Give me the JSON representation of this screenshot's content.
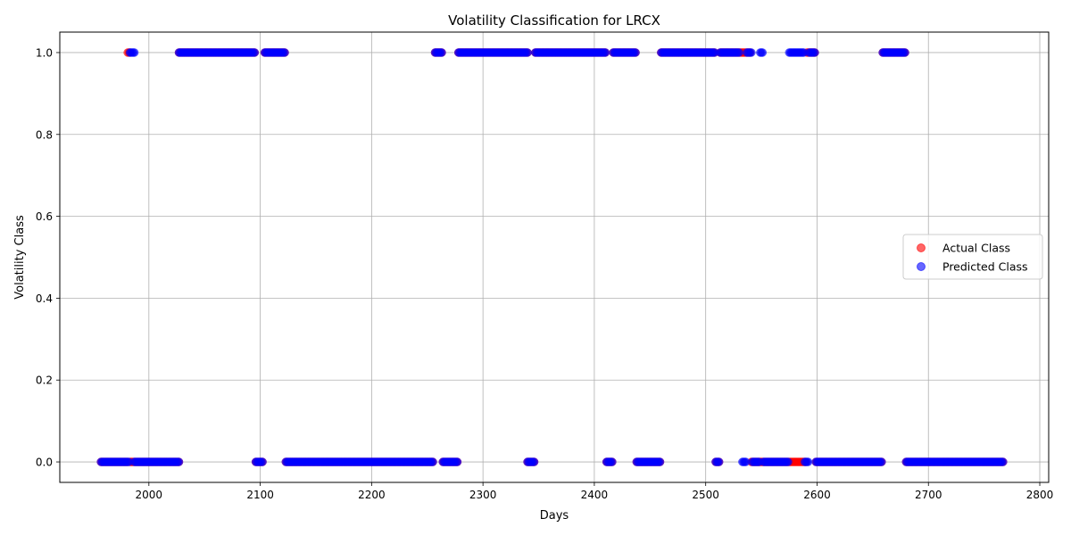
{
  "chart_data": {
    "type": "scatter",
    "title": "Volatility Classification for LRCX",
    "xlabel": "Days",
    "ylabel": "Volatility Class",
    "xlim": [
      1920,
      2808
    ],
    "ylim": [
      -0.05,
      1.05
    ],
    "xticks": [
      2000,
      2100,
      2200,
      2300,
      2400,
      2500,
      2600,
      2700,
      2800
    ],
    "yticks": [
      0.0,
      0.2,
      0.4,
      0.6,
      0.8,
      1.0
    ],
    "xtick_labels": [
      "2000",
      "2100",
      "2200",
      "2300",
      "2400",
      "2500",
      "2600",
      "2700",
      "2800"
    ],
    "ytick_labels": [
      "0.0",
      "0.2",
      "0.4",
      "0.6",
      "0.8",
      "1.0"
    ],
    "grid": true,
    "legend_position": "center-right",
    "series": [
      {
        "name": "Actual Class",
        "color": "#ff0000",
        "marker": "circle",
        "opacity": 0.6,
        "segments": [
          {
            "from": 1957,
            "to": 1981,
            "y": 0
          },
          {
            "from": 1981,
            "to": 1983,
            "y": 1
          },
          {
            "from": 1983,
            "to": 2027,
            "y": 0
          },
          {
            "from": 2027,
            "to": 2095,
            "y": 1
          },
          {
            "from": 2096,
            "to": 2102,
            "y": 0
          },
          {
            "from": 2104,
            "to": 2122,
            "y": 1
          },
          {
            "from": 2123,
            "to": 2255,
            "y": 0
          },
          {
            "from": 2257,
            "to": 2263,
            "y": 1
          },
          {
            "from": 2264,
            "to": 2277,
            "y": 0
          },
          {
            "from": 2278,
            "to": 2340,
            "y": 1
          },
          {
            "from": 2340,
            "to": 2346,
            "y": 0
          },
          {
            "from": 2347,
            "to": 2410,
            "y": 1
          },
          {
            "from": 2411,
            "to": 2416,
            "y": 0
          },
          {
            "from": 2417,
            "to": 2437,
            "y": 1
          },
          {
            "from": 2438,
            "to": 2459,
            "y": 0
          },
          {
            "from": 2460,
            "to": 2508,
            "y": 1
          },
          {
            "from": 2509,
            "to": 2512,
            "y": 0
          },
          {
            "from": 2513,
            "to": 2540,
            "y": 1
          },
          {
            "from": 2541,
            "to": 2590,
            "y": 0
          },
          {
            "from": 2591,
            "to": 2598,
            "y": 1
          },
          {
            "from": 2599,
            "to": 2658,
            "y": 0
          },
          {
            "from": 2659,
            "to": 2679,
            "y": 1
          },
          {
            "from": 2680,
            "to": 2767,
            "y": 0
          }
        ]
      },
      {
        "name": "Predicted Class",
        "color": "#0000ff",
        "marker": "circle",
        "opacity": 0.6,
        "segments": [
          {
            "from": 1957,
            "to": 1982,
            "y": 0
          },
          {
            "from": 1983,
            "to": 1987,
            "y": 1
          },
          {
            "from": 1987,
            "to": 2027,
            "y": 0
          },
          {
            "from": 2027,
            "to": 2095,
            "y": 1
          },
          {
            "from": 2096,
            "to": 2102,
            "y": 0
          },
          {
            "from": 2104,
            "to": 2122,
            "y": 1
          },
          {
            "from": 2123,
            "to": 2255,
            "y": 0
          },
          {
            "from": 2257,
            "to": 2263,
            "y": 1
          },
          {
            "from": 2264,
            "to": 2277,
            "y": 0
          },
          {
            "from": 2278,
            "to": 2340,
            "y": 1
          },
          {
            "from": 2340,
            "to": 2346,
            "y": 0
          },
          {
            "from": 2347,
            "to": 2410,
            "y": 1
          },
          {
            "from": 2411,
            "to": 2416,
            "y": 0
          },
          {
            "from": 2417,
            "to": 2437,
            "y": 1
          },
          {
            "from": 2438,
            "to": 2459,
            "y": 0
          },
          {
            "from": 2460,
            "to": 2508,
            "y": 1
          },
          {
            "from": 2509,
            "to": 2512,
            "y": 0
          },
          {
            "from": 2513,
            "to": 2530,
            "y": 1
          },
          {
            "from": 2533,
            "to": 2536,
            "y": 0
          },
          {
            "from": 2537,
            "to": 2541,
            "y": 1
          },
          {
            "from": 2542,
            "to": 2548,
            "y": 0
          },
          {
            "from": 2549,
            "to": 2551,
            "y": 1
          },
          {
            "from": 2552,
            "to": 2574,
            "y": 0
          },
          {
            "from": 2575,
            "to": 2588,
            "y": 1
          },
          {
            "from": 2589,
            "to": 2592,
            "y": 0
          },
          {
            "from": 2593,
            "to": 2598,
            "y": 1
          },
          {
            "from": 2599,
            "to": 2658,
            "y": 0
          },
          {
            "from": 2659,
            "to": 2679,
            "y": 1
          },
          {
            "from": 2680,
            "to": 2767,
            "y": 0
          }
        ]
      }
    ]
  }
}
